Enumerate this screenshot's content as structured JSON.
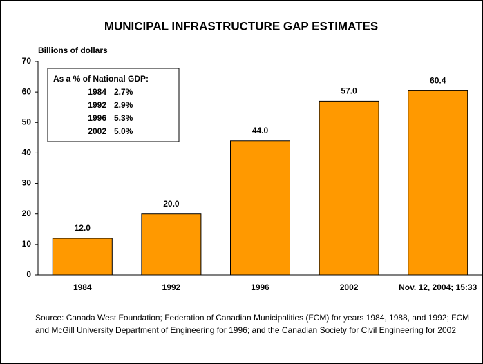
{
  "chart_data": {
    "type": "bar",
    "title": "MUNICIPAL INFRASTRUCTURE GAP ESTIMATES",
    "y_label": "Billions of dollars",
    "categories": [
      "1984",
      "1992",
      "1996",
      "2002",
      "Nov. 12, 2004; 15:33"
    ],
    "values": [
      12,
      20,
      44,
      57,
      60.4
    ],
    "value_labels": [
      "12.0",
      "20.0",
      "44.0",
      "57.0",
      "60.4"
    ],
    "color": "#ff9900",
    "ylim": [
      0,
      70
    ],
    "yticks": [
      0,
      10,
      20,
      30,
      40,
      50,
      60,
      70
    ],
    "grid": false,
    "inset": {
      "title": "As a % of National GDP:",
      "rows": [
        [
          "1984",
          "2.7%"
        ],
        [
          "1992",
          "2.9%"
        ],
        [
          "1996",
          "5.3%"
        ],
        [
          "2002",
          "5.0%"
        ]
      ]
    },
    "source": "Source: Canada West Foundation; Federation of Canadian Municipalities (FCM) for years 1984, 1988, and 1992; FCM and McGill University Department of Engineering for 1996; and the Canadian Society for Civil Engineering for 2002"
  }
}
